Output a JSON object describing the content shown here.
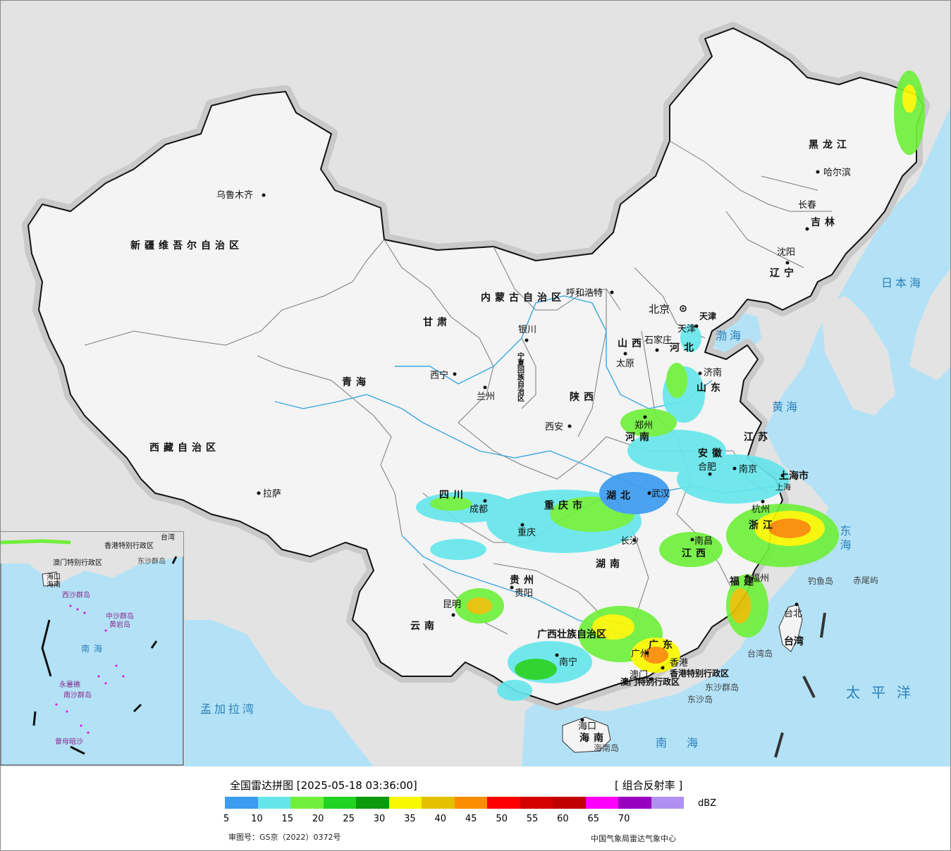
{
  "colors": {
    "ocean": "#b3e2f7",
    "land_other": "#e3e3e3",
    "china_land": "#f4f4f4",
    "halo": "#c9c9c9",
    "border": "#111111",
    "province_line": "#7a7a7a",
    "river": "#3ba7e0",
    "water_label": "#2a7fb8",
    "island_label": "#444444"
  },
  "legend": {
    "title": "全国雷达拼图 [2025-05-18 03:36:00]",
    "product": "[ 组合反射率 ]",
    "unit": "dBZ",
    "colors": [
      "#3c9cf0",
      "#66e6ec",
      "#70f03c",
      "#22d222",
      "#0c9a0c",
      "#f8f800",
      "#e4c000",
      "#fc8c00",
      "#fc0000",
      "#d40000",
      "#c00000",
      "#fc00fc",
      "#9800c0",
      "#b090f0"
    ],
    "ticks": [
      "5",
      "10",
      "15",
      "20",
      "25",
      "30",
      "35",
      "40",
      "45",
      "50",
      "55",
      "60",
      "65",
      "70"
    ],
    "approval": "审图号：GS京（2022）0372号",
    "source": "中国气象局雷达气象中心"
  },
  "map": {
    "provinces": [
      "新疆维吾尔自治区",
      "西藏自治区",
      "青海",
      "甘肃",
      "内蒙古自治区",
      "黑龙江",
      "吉林",
      "辽宁",
      "河北",
      "山西",
      "山东",
      "河南",
      "陕西",
      "四川",
      "重庆市",
      "湖北",
      "安徽",
      "江苏",
      "上海市",
      "浙江",
      "江西",
      "湖南",
      "贵州",
      "云南",
      "广西壮族自治区",
      "广东",
      "福建",
      "台湾",
      "海南",
      "宁夏回族自治区",
      "天津",
      "北京",
      "香港特别行政区",
      "澳门特别行政区"
    ],
    "cities": [
      "乌鲁木齐",
      "拉萨",
      "西宁",
      "兰州",
      "银川",
      "呼和浩特",
      "北京",
      "天津",
      "石家庄",
      "太原",
      "济南",
      "郑州",
      "西安",
      "成都",
      "重庆",
      "贵阳",
      "昆明",
      "南宁",
      "广州",
      "香港",
      "澳门",
      "海口",
      "长沙",
      "武汉",
      "合肥",
      "南京",
      "上海",
      "杭州",
      "南昌",
      "福州",
      "台北",
      "沈阳",
      "长春",
      "哈尔滨"
    ],
    "seas": [
      "日本海",
      "渤海",
      "黄海",
      "东海",
      "南海",
      "太平洋",
      "孟加拉湾"
    ],
    "islands": [
      "钓鱼岛",
      "赤尾屿",
      "台湾岛",
      "东沙群岛",
      "东沙岛",
      "海南岛"
    ],
    "inset": {
      "labels": [
        "南海",
        "中沙群岛",
        "黄岩岛",
        "西沙群岛",
        "南沙群岛",
        "永暑礁",
        "曾母暗沙",
        "海口",
        "海南",
        "东沙群岛",
        "澳门特别行政区",
        "香港特别行政区",
        "台湾"
      ]
    }
  }
}
